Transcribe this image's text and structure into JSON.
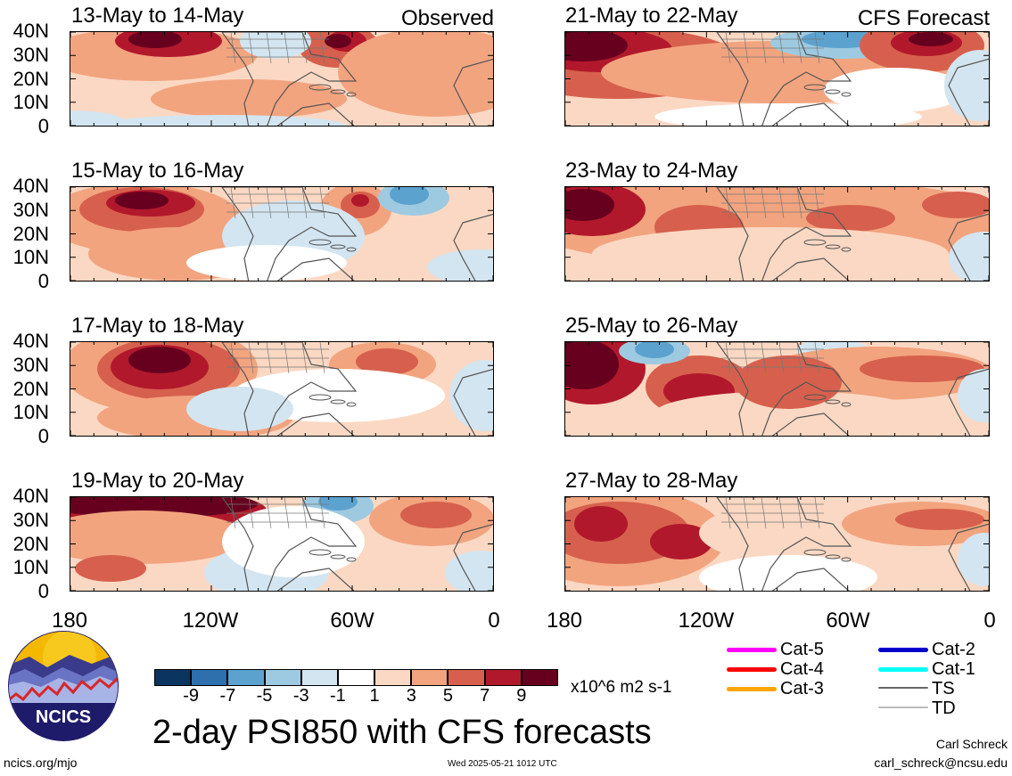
{
  "header": {
    "observed_label": "Observed",
    "forecast_label": "CFS Forecast"
  },
  "panels_left": [
    {
      "title": "13-May to 14-May"
    },
    {
      "title": "15-May to 16-May"
    },
    {
      "title": "17-May to 18-May"
    },
    {
      "title": "19-May to 20-May"
    }
  ],
  "panels_right": [
    {
      "title": "21-May to 22-May"
    },
    {
      "title": "23-May to 24-May"
    },
    {
      "title": "25-May to 26-May"
    },
    {
      "title": "27-May to 28-May"
    }
  ],
  "y_ticks": [
    "40N",
    "30N",
    "20N",
    "10N",
    "0"
  ],
  "x_ticks": [
    "180",
    "120W",
    "60W",
    "0"
  ],
  "colorbar": {
    "labels": [
      "-9",
      "-7",
      "-5",
      "-3",
      "-1",
      "1",
      "3",
      "5",
      "7",
      "9"
    ],
    "colors": [
      "#0b3560",
      "#2e6fad",
      "#5ca2cf",
      "#9ecae1",
      "#d3e5f0",
      "#ffffff",
      "#fbd8c3",
      "#f2a47f",
      "#d6604d",
      "#b2182b",
      "#67001f"
    ],
    "units": "x10^6 m2 s-1"
  },
  "legend": {
    "items_left": [
      {
        "label": "Cat-5",
        "color": "#ff00ff"
      },
      {
        "label": "Cat-4",
        "color": "#ff0000"
      },
      {
        "label": "Cat-3",
        "color": "#ffa500"
      }
    ],
    "items_right": [
      {
        "label": "Cat-2",
        "color": "#0000cd"
      },
      {
        "label": "Cat-1",
        "color": "#00ffff"
      },
      {
        "label": "TS",
        "color": "#666666"
      },
      {
        "label": "TD",
        "color": "#bbbbbb"
      }
    ]
  },
  "footer": {
    "main_title": "2-day PSI850 with CFS forecasts",
    "logo_text": "NCICS",
    "url": "ncics.org/mjo",
    "timestamp": "Wed 2025-05-21 1012 UTC",
    "author": "Carl Schreck",
    "email": "carl_schreck@ncsu.edu"
  }
}
